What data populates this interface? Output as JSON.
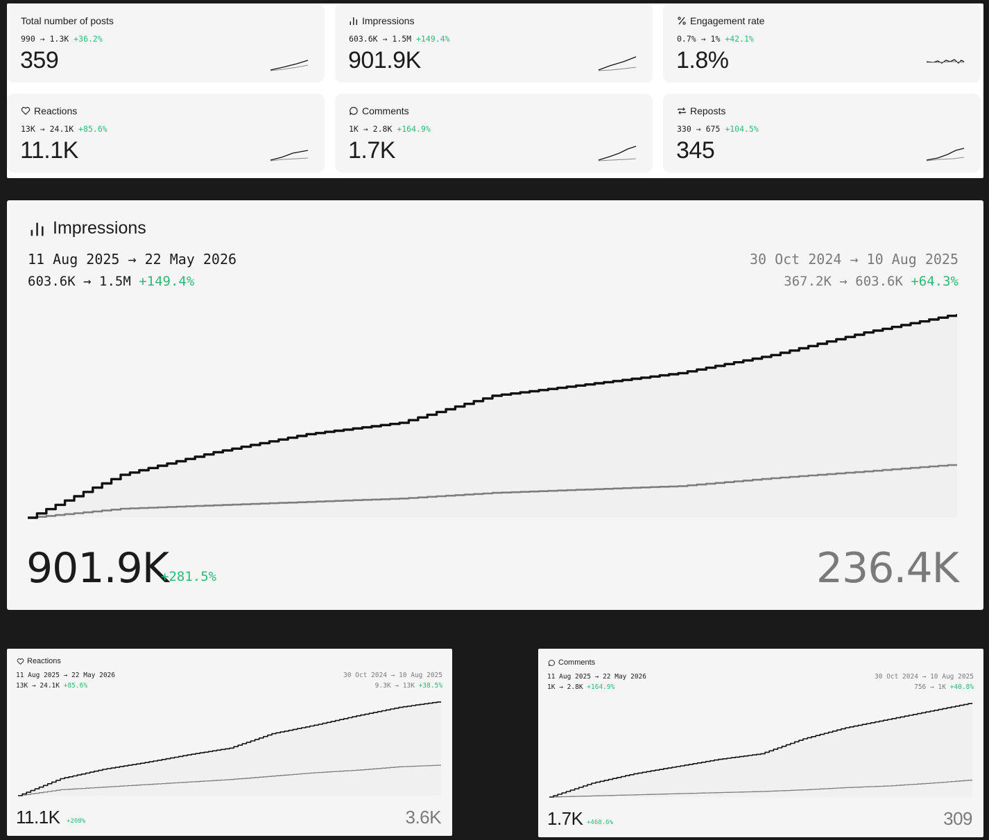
{
  "stats": [
    {
      "title": "Total number of posts",
      "icon": "none",
      "from": "990",
      "to": "1.3K",
      "change": "+36.2%",
      "value": "359"
    },
    {
      "title": "Impressions",
      "icon": "bar-chart-icon",
      "from": "603.6K",
      "to": "1.5M",
      "change": "+149.4%",
      "value": "901.9K"
    },
    {
      "title": "Engagement rate",
      "icon": "percent-icon",
      "from": "0.7%",
      "to": "1%",
      "change": "+42.1%",
      "value": "1.8%"
    },
    {
      "title": "Reactions",
      "icon": "heart-icon",
      "from": "13K",
      "to": "24.1K",
      "change": "+85.6%",
      "value": "11.1K"
    },
    {
      "title": "Comments",
      "icon": "comment-icon",
      "from": "1K",
      "to": "2.8K",
      "change": "+164.9%",
      "value": "1.7K"
    },
    {
      "title": "Reposts",
      "icon": "repost-icon",
      "from": "330",
      "to": "675",
      "change": "+104.5%",
      "value": "345"
    }
  ],
  "arrow": "→",
  "impressions": {
    "title": "Impressions",
    "current_range": "11 Aug 2025 → 22 May 2026",
    "current_from": "603.6K",
    "current_to": "1.5M",
    "current_change": "+149.4%",
    "previous_range": "30 Oct 2024 → 10 Aug 2025",
    "previous_from": "367.2K",
    "previous_to": "603.6K",
    "previous_change": "+64.3%",
    "current_total": "901.9K",
    "total_change": "+281.5%",
    "previous_total": "236.4K"
  },
  "reactions": {
    "title": "Reactions",
    "current_range": "11 Aug 2025 → 22 May 2026",
    "current_from": "13K",
    "current_to": "24.1K",
    "current_change": "+85.6%",
    "previous_range": "30 Oct 2024 → 10 Aug 2025",
    "previous_from": "9.3K",
    "previous_to": "13K",
    "previous_change": "+38.5%",
    "current_total": "11.1K",
    "total_change": "+208%",
    "previous_total": "3.6K"
  },
  "comments": {
    "title": "Comments",
    "current_range": "11 Aug 2025 → 22 May 2026",
    "current_from": "1K",
    "current_to": "2.8K",
    "current_change": "+164.9%",
    "previous_range": "30 Oct 2024 → 10 Aug 2025",
    "previous_from": "756",
    "previous_to": "1K",
    "previous_change": "+40.8%",
    "current_total": "1.7K",
    "total_change": "+468.6%",
    "previous_total": "309"
  },
  "chart_data": [
    {
      "type": "line",
      "x": [
        0,
        10,
        20,
        30,
        40,
        50,
        60,
        70,
        80,
        90,
        100
      ],
      "series": [
        {
          "values": [
            0,
            190,
            290,
            370,
            420,
            540,
            590,
            640,
            720,
            820,
            901.9
          ]
        },
        {
          "values": [
            0,
            40,
            55,
            70,
            85,
            110,
            125,
            140,
            175,
            205,
            236.4
          ]
        }
      ]
    },
    {
      "type": "line",
      "x": [
        0,
        10,
        20,
        30,
        40,
        50,
        60,
        70,
        80,
        90,
        100
      ],
      "series": [
        {
          "values": [
            0,
            2.0,
            3.1,
            3.9,
            4.8,
            5.6,
            7.3,
            8.3,
            9.4,
            10.4,
            11.1
          ]
        },
        {
          "values": [
            0,
            0.7,
            1.0,
            1.3,
            1.6,
            1.9,
            2.3,
            2.7,
            3.0,
            3.4,
            3.6
          ]
        }
      ]
    },
    {
      "type": "line",
      "x": [
        0,
        10,
        20,
        30,
        40,
        50,
        60,
        70,
        80,
        90,
        100
      ],
      "series": [
        {
          "values": [
            0,
            0.25,
            0.42,
            0.55,
            0.68,
            0.78,
            1.05,
            1.25,
            1.4,
            1.55,
            1.7
          ]
        },
        {
          "values": [
            0,
            0.02,
            0.04,
            0.06,
            0.08,
            0.1,
            0.13,
            0.17,
            0.2,
            0.25,
            0.309
          ]
        }
      ]
    }
  ]
}
